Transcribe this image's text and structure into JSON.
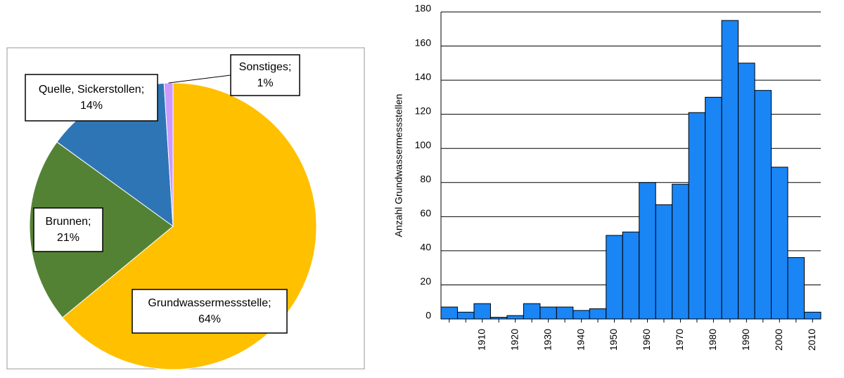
{
  "chart_data": [
    {
      "type": "pie",
      "categories": [
        "Grundwassermessstelle;",
        "Brunnen;",
        "Quelle, Sickerstollen;",
        "Sonstiges;"
      ],
      "values": [
        64,
        21,
        14,
        1
      ],
      "value_labels": [
        "64%",
        "21%",
        "14%",
        "1%"
      ],
      "colors": [
        "#ffc000",
        "#548235",
        "#2e75b6",
        "#cc99ff"
      ]
    },
    {
      "type": "bar",
      "y_label": "Anzahl Grundwassermessstellen",
      "categories": [
        null,
        null,
        "1910",
        null,
        "1920",
        null,
        "1930",
        null,
        "1940",
        null,
        "1950",
        null,
        "1960",
        null,
        "1970",
        null,
        "1980",
        null,
        "1990",
        null,
        "2000",
        null,
        "2010"
      ],
      "values": [
        7,
        4,
        9,
        1,
        2,
        9,
        7,
        7,
        5,
        6,
        49,
        51,
        80,
        67,
        79,
        121,
        130,
        175,
        150,
        134,
        89,
        36,
        4
      ],
      "color": "#1a85f5",
      "ylim": [
        0,
        180
      ],
      "yticks": [
        0,
        20,
        40,
        60,
        80,
        100,
        120,
        140,
        160,
        180
      ],
      "grid": true
    }
  ]
}
